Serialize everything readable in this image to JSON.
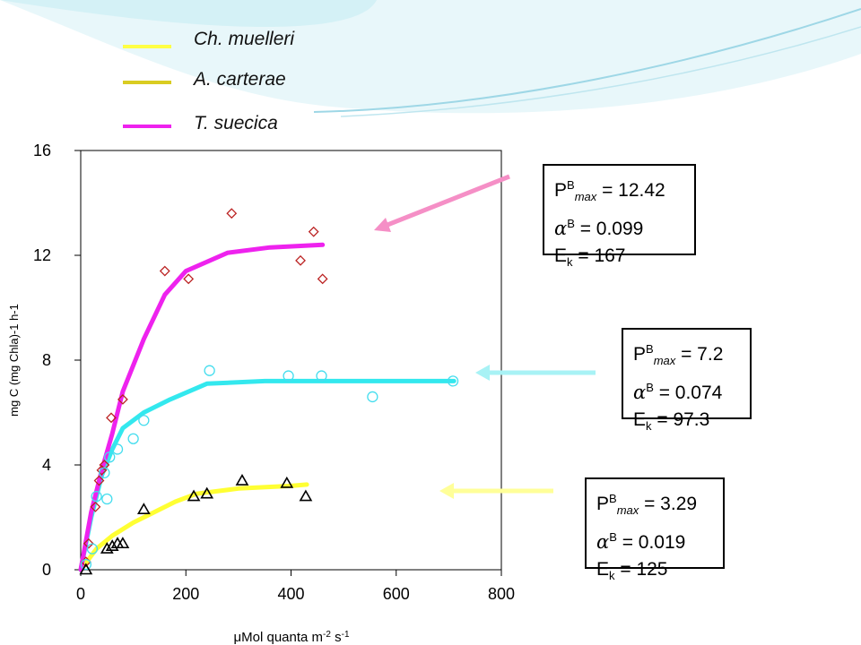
{
  "colors": {
    "ch_muelleri": "#33e8ee",
    "a_carterae": "#ffff33",
    "a_carterae_legend": "#d9cc22",
    "t_suecica": "#ee22ee",
    "diamond": "#bb2222",
    "circle": "#44ddee",
    "triangle": "#000000"
  },
  "legend": [
    {
      "label": "Ch. muelleri",
      "color": "#ffff44"
    },
    {
      "label": "A. carterae",
      "color": "#d9cc22"
    },
    {
      "label": "T. suecica",
      "color": "#ee22ee"
    }
  ],
  "chart_data": {
    "type": "scatter",
    "xlabel_prefix": "μ",
    "xlabel": "Mol quanta m",
    "xlabel_sup1": "-2",
    "xlabel_mid": " s",
    "xlabel_sup2": "-1",
    "ylabel": "mg C (mg Chla)-1 h-1",
    "xlim": [
      0,
      800
    ],
    "ylim": [
      0,
      16
    ],
    "xticks": [
      "0",
      "200",
      "400",
      "600",
      "800"
    ],
    "yticks": [
      "0",
      "4",
      "8",
      "12",
      "16"
    ],
    "series": [
      {
        "marker": "diamond",
        "points": [
          [
            10,
            0.3
          ],
          [
            15,
            1.0
          ],
          [
            28,
            2.4
          ],
          [
            35,
            3.4
          ],
          [
            40,
            3.8
          ],
          [
            45,
            4.0
          ],
          [
            58,
            5.8
          ],
          [
            80,
            6.5
          ],
          [
            160,
            11.4
          ],
          [
            205,
            11.1
          ],
          [
            287,
            13.6
          ],
          [
            418,
            11.8
          ],
          [
            443,
            12.9
          ],
          [
            460,
            11.1
          ]
        ],
        "fit": [
          [
            0,
            0
          ],
          [
            20,
            2.2
          ],
          [
            40,
            3.8
          ],
          [
            60,
            5.2
          ],
          [
            80,
            6.8
          ],
          [
            120,
            8.8
          ],
          [
            160,
            10.5
          ],
          [
            200,
            11.4
          ],
          [
            280,
            12.1
          ],
          [
            360,
            12.3
          ],
          [
            460,
            12.4
          ]
        ]
      },
      {
        "marker": "circle",
        "points": [
          [
            10,
            0.2
          ],
          [
            22,
            0.8
          ],
          [
            30,
            2.8
          ],
          [
            45,
            3.7
          ],
          [
            50,
            2.7
          ],
          [
            55,
            4.3
          ],
          [
            70,
            4.6
          ],
          [
            100,
            5.0
          ],
          [
            120,
            5.7
          ],
          [
            245,
            7.6
          ],
          [
            395,
            7.4
          ],
          [
            458,
            7.4
          ],
          [
            555,
            6.6
          ],
          [
            708,
            7.2
          ]
        ],
        "fit": [
          [
            0,
            0
          ],
          [
            20,
            2.0
          ],
          [
            40,
            3.6
          ],
          [
            60,
            4.6
          ],
          [
            80,
            5.4
          ],
          [
            120,
            6.0
          ],
          [
            170,
            6.5
          ],
          [
            240,
            7.1
          ],
          [
            350,
            7.2
          ],
          [
            710,
            7.2
          ]
        ]
      },
      {
        "marker": "triangle",
        "points": [
          [
            10,
            0.0
          ],
          [
            50,
            0.8
          ],
          [
            60,
            0.9
          ],
          [
            70,
            1.0
          ],
          [
            80,
            1.0
          ],
          [
            120,
            2.3
          ],
          [
            215,
            2.8
          ],
          [
            240,
            2.9
          ],
          [
            307,
            3.4
          ],
          [
            392,
            3.3
          ],
          [
            428,
            2.8
          ]
        ],
        "fit": [
          [
            0,
            0
          ],
          [
            30,
            0.8
          ],
          [
            60,
            1.3
          ],
          [
            100,
            1.8
          ],
          [
            130,
            2.1
          ],
          [
            180,
            2.6
          ],
          [
            220,
            2.9
          ],
          [
            300,
            3.1
          ],
          [
            400,
            3.2
          ],
          [
            430,
            3.25
          ]
        ]
      }
    ]
  },
  "boxes": [
    {
      "p_base": "P",
      "p_sup": "B",
      "p_sub": "max",
      "p_val": " = 12.42",
      "a_sym": "α",
      "a_sup": "B",
      "a_val": " = 0.099",
      "e_base": "E",
      "e_sub": "k",
      "e_val": " = 167"
    },
    {
      "p_base": "P",
      "p_sup": "B",
      "p_sub": "max",
      "p_val": " = 7.2",
      "a_sym": "α",
      "a_sup": "B",
      "a_val": " = 0.074",
      "e_base": "E",
      "e_sub": "k",
      "e_val": " = 97.3"
    },
    {
      "p_base": "P",
      "p_sup": "B",
      "p_sub": "max",
      "p_val": " = 3.29",
      "a_sym": "α",
      "a_sup": "B",
      "a_val": " = 0.019",
      "e_base": "E",
      "e_sub": "k",
      "e_val": " = 125"
    }
  ],
  "arrows": [
    {
      "color": "#f58fc6"
    },
    {
      "color": "#a8f2f5"
    },
    {
      "color": "#ffff99"
    }
  ]
}
